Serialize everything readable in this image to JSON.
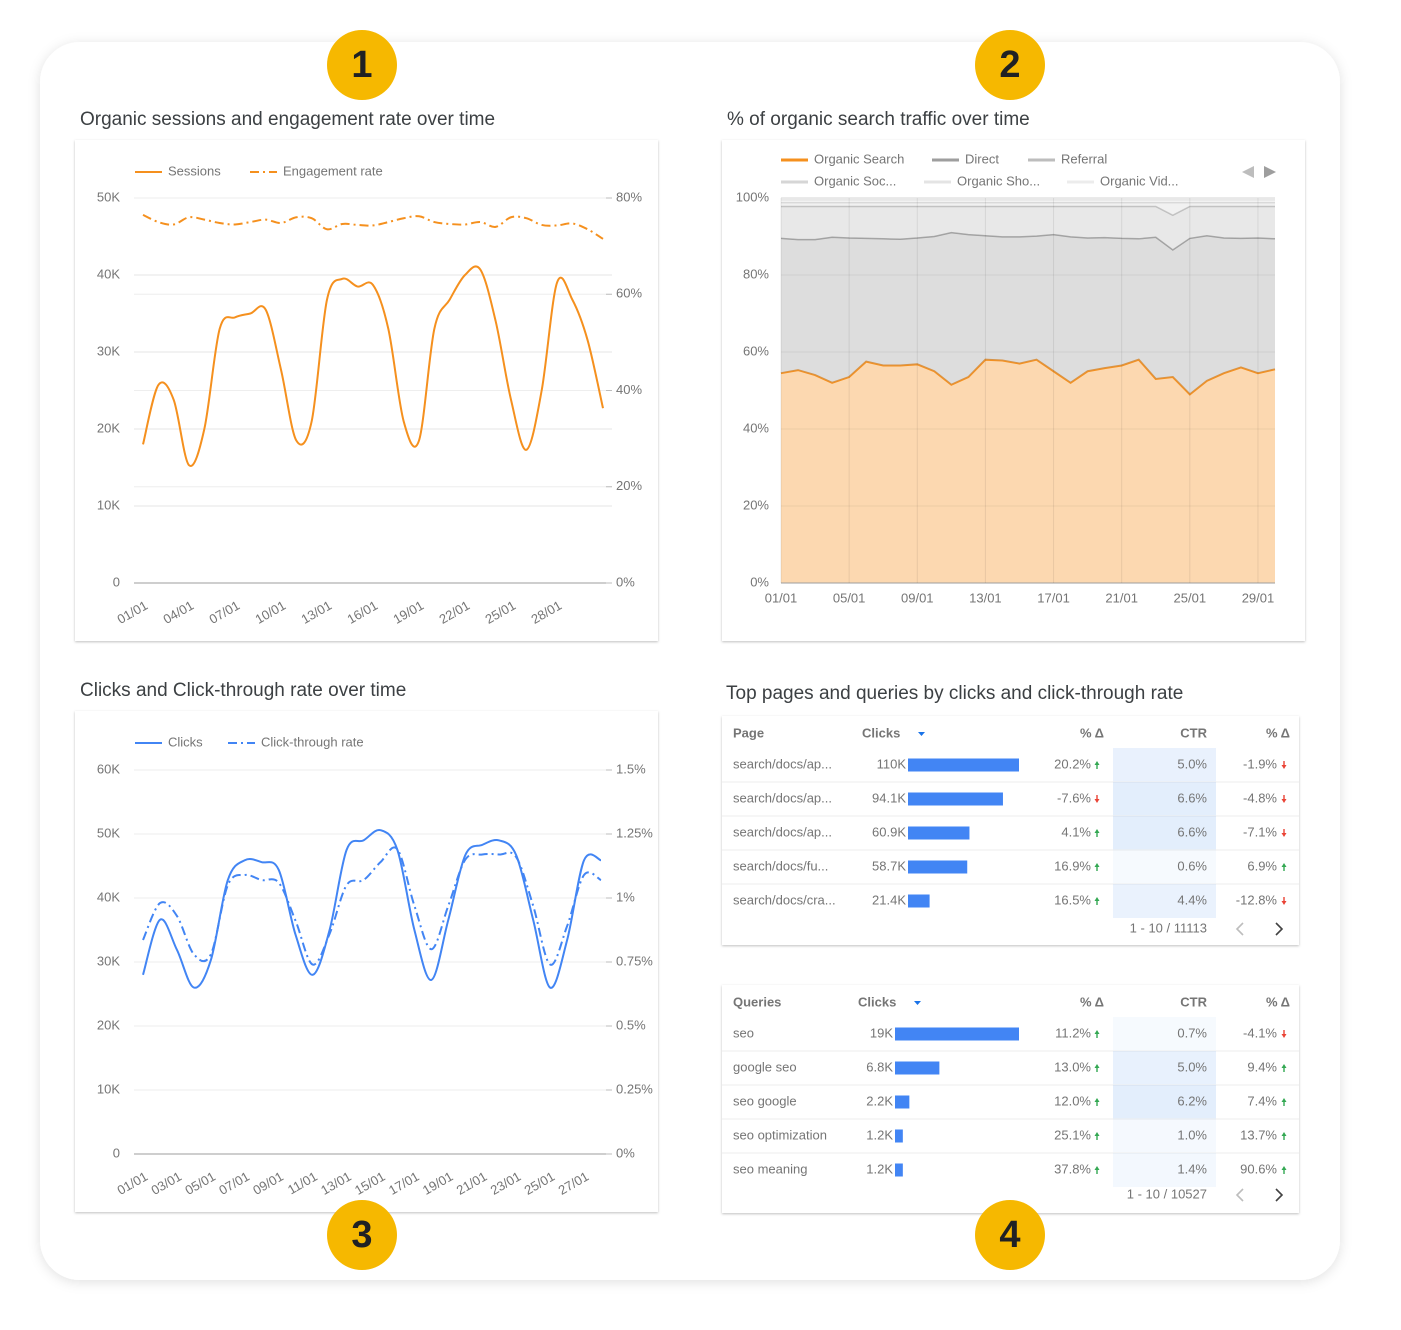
{
  "badges": [
    "1",
    "2",
    "3",
    "4"
  ],
  "chart_data": [
    {
      "type": "line",
      "title": "Organic sessions and engagement rate over time",
      "curve": "smooth",
      "grid": true,
      "categories": [
        "01/01",
        null,
        null,
        "04/01",
        null,
        null,
        "07/01",
        null,
        null,
        "10/01",
        null,
        null,
        "13/01",
        null,
        null,
        "16/01",
        null,
        null,
        "19/01",
        null,
        null,
        "22/01",
        null,
        null,
        "25/01",
        null,
        null,
        "28/01",
        null,
        null,
        null
      ],
      "series": [
        {
          "name": "Sessions",
          "color": "#f5901e",
          "values": [
            18000,
            25700,
            23800,
            15300,
            20000,
            33000,
            34500,
            35000,
            35500,
            27700,
            18500,
            21000,
            36800,
            39500,
            38500,
            38700,
            33000,
            21000,
            18500,
            33000,
            36800,
            40000,
            40700,
            34000,
            23800,
            17300,
            25000,
            39000,
            36800,
            31500,
            22700
          ]
        },
        {
          "name": "Engagement rate",
          "color": "#f5901e",
          "dash": "dashdot",
          "axis": "y2",
          "values": [
            76.5,
            75,
            74.5,
            76,
            75.5,
            74.8,
            74.5,
            75,
            75.5,
            74.8,
            76,
            75.8,
            73.5,
            74.6,
            74.4,
            74.3,
            75,
            75.8,
            76.2,
            75,
            74.6,
            74.5,
            75,
            74,
            76,
            75.8,
            74.4,
            74.3,
            74.7,
            73.5,
            71.5
          ]
        }
      ],
      "ylim": [
        0,
        50000
      ],
      "yticks": [
        {
          "value": 0,
          "label": "0"
        },
        {
          "value": 10000,
          "label": "10K"
        },
        {
          "value": 20000,
          "label": "20K"
        },
        {
          "value": 30000,
          "label": "30K"
        },
        {
          "value": 40000,
          "label": "40K"
        },
        {
          "value": 50000,
          "label": "50K"
        }
      ],
      "y2lim": [
        0,
        80
      ],
      "y2ticks": [
        {
          "value": 0,
          "label": "0%"
        },
        {
          "value": 20,
          "label": "20%"
        },
        {
          "value": 40,
          "label": "40%"
        },
        {
          "value": 60,
          "label": "60%"
        },
        {
          "value": 80,
          "label": "80%"
        }
      ]
    },
    {
      "type": "area",
      "stacked": true,
      "title": "% of organic search traffic over time",
      "grid": true,
      "categories": [
        "01/01",
        null,
        null,
        null,
        "05/01",
        null,
        null,
        null,
        "09/01",
        null,
        null,
        null,
        "13/01",
        null,
        null,
        null,
        "17/01",
        null,
        null,
        null,
        "21/01",
        null,
        null,
        null,
        "25/01",
        null,
        null,
        null,
        "29/01",
        null
      ],
      "series": [
        {
          "name": "Organic Search",
          "color": "#f5901e",
          "values": [
            54.5,
            55.3,
            54,
            52,
            53.5,
            57.5,
            56.5,
            56.5,
            56.8,
            55,
            51.5,
            53.5,
            58,
            57.8,
            57,
            58,
            55,
            52,
            55,
            55.8,
            56.5,
            58,
            53,
            53.5,
            49,
            52.5,
            54.5,
            56,
            54.5,
            55.5
          ]
        },
        {
          "name": "Direct",
          "color": "#9e9e9e",
          "values": [
            35.0,
            33.9,
            35.2,
            37.8,
            36.1,
            32.0,
            32.9,
            32.8,
            32.8,
            35.0,
            39.5,
            37.0,
            32.2,
            32.1,
            32.9,
            32.1,
            35.5,
            37.9,
            34.6,
            33.9,
            33.0,
            31.4,
            36.8,
            33.0,
            40.5,
            37.7,
            35.1,
            33.5,
            35.1,
            33.9
          ]
        },
        {
          "name": "Referral",
          "color": "#bdbdbd",
          "values": [
            8.3,
            8.6,
            8.6,
            8.0,
            8.2,
            8.3,
            8.4,
            8.5,
            8.2,
            7.8,
            6.8,
            7.3,
            7.6,
            7.9,
            7.9,
            7.7,
            7.3,
            7.9,
            8.2,
            8.1,
            8.3,
            8.4,
            8.0,
            9.0,
            8.3,
            7.6,
            8.2,
            8.3,
            8.2,
            8.4
          ]
        },
        {
          "name": "Organic Soc...",
          "color": "#d6d6d6",
          "values": [
            1,
            1,
            1,
            1,
            1,
            1,
            1,
            1,
            1,
            1,
            1,
            1,
            1,
            1,
            1,
            1,
            1,
            1,
            1,
            1,
            1,
            1,
            1,
            3.3,
            1,
            1,
            1,
            1,
            1,
            1
          ]
        },
        {
          "name": "Organic Sho...",
          "color": "#e4e4e4",
          "values": [
            0.7,
            0.7,
            0.7,
            0.7,
            0.7,
            0.7,
            0.7,
            0.7,
            0.7,
            0.7,
            0.7,
            0.7,
            0.7,
            0.7,
            0.7,
            0.7,
            0.7,
            0.7,
            0.7,
            0.7,
            0.7,
            0.7,
            0.7,
            0.7,
            0.7,
            0.7,
            0.7,
            0.7,
            0.7,
            0.7
          ]
        },
        {
          "name": "Organic Vid...",
          "color": "#ececec",
          "values": [
            0.5,
            0.5,
            0.5,
            0.5,
            0.5,
            0.5,
            0.5,
            0.5,
            0.5,
            0.5,
            0.5,
            0.5,
            0.5,
            0.5,
            0.5,
            0.5,
            0.5,
            0.5,
            0.5,
            0.5,
            0.5,
            0.5,
            0.5,
            0.5,
            0.5,
            0.5,
            0.5,
            0.5,
            0.5,
            0.5
          ]
        }
      ],
      "ylim": [
        0,
        100
      ],
      "yticks": [
        {
          "value": 0,
          "label": "0%"
        },
        {
          "value": 20,
          "label": "20%"
        },
        {
          "value": 40,
          "label": "40%"
        },
        {
          "value": 60,
          "label": "60%"
        },
        {
          "value": 80,
          "label": "80%"
        },
        {
          "value": 100,
          "label": "100%"
        }
      ]
    },
    {
      "type": "line",
      "title": "Clicks and Click-through rate over time",
      "curve": "smooth",
      "grid": true,
      "categories": [
        "01/01",
        null,
        "03/01",
        null,
        "05/01",
        null,
        "07/01",
        null,
        "09/01",
        null,
        "11/01",
        null,
        "13/01",
        null,
        "15/01",
        null,
        "17/01",
        null,
        "19/01",
        null,
        "21/01",
        null,
        "23/01",
        null,
        "25/01",
        null,
        "27/01",
        null
      ],
      "series": [
        {
          "name": "Clicks",
          "color": "#4285f4",
          "values": [
            28000,
            36600,
            31900,
            26000,
            30300,
            42800,
            45900,
            45600,
            44400,
            34200,
            28000,
            35000,
            47500,
            49000,
            50600,
            47500,
            35000,
            27200,
            36600,
            46700,
            48300,
            49000,
            46700,
            36600,
            26000,
            33400,
            45900,
            45900
          ]
        },
        {
          "name": "Click-through rate",
          "color": "#4285f4",
          "dash": "dashdot",
          "axis": "y2",
          "values": [
            0.836,
            0.98,
            0.93,
            0.78,
            0.78,
            1.05,
            1.09,
            1.07,
            1.06,
            0.91,
            0.74,
            0.86,
            1.05,
            1.07,
            1.14,
            1.19,
            0.97,
            0.8,
            0.97,
            1.15,
            1.17,
            1.17,
            1.16,
            0.97,
            0.74,
            0.89,
            1.09,
            1.07
          ]
        }
      ],
      "ylim": [
        0,
        60000
      ],
      "yticks": [
        {
          "value": 0,
          "label": "0"
        },
        {
          "value": 10000,
          "label": "10K"
        },
        {
          "value": 20000,
          "label": "20K"
        },
        {
          "value": 30000,
          "label": "30K"
        },
        {
          "value": 40000,
          "label": "40K"
        },
        {
          "value": 50000,
          "label": "50K"
        },
        {
          "value": 60000,
          "label": "60K"
        }
      ],
      "y2lim": [
        0,
        1.5
      ],
      "y2ticks": [
        {
          "value": 0,
          "label": "0%"
        },
        {
          "value": 0.25,
          "label": "0.25%"
        },
        {
          "value": 0.5,
          "label": "0.5%"
        },
        {
          "value": 0.75,
          "label": "0.75%"
        },
        {
          "value": 1,
          "label": "1%"
        },
        {
          "value": 1.25,
          "label": "1.25%"
        },
        {
          "value": 1.5,
          "label": "1.5%"
        }
      ]
    }
  ],
  "top_pages_and_queries": {
    "title": "Top pages and queries by clicks and click-through rate",
    "tables": [
      {
        "columns": [
          "Page",
          "Clicks",
          "% Δ",
          "CTR",
          "% Δ"
        ],
        "rows": [
          {
            "label": "search/docs/ap...",
            "clicks": 110000,
            "clicks_label": "110K",
            "clicks_change": "20.2%",
            "ctr": "5.0%",
            "ctr_change": "-1.9%"
          },
          {
            "label": "search/docs/ap...",
            "clicks": 94100,
            "clicks_label": "94.1K",
            "clicks_change": "-7.6%",
            "ctr": "6.6%",
            "ctr_change": "-4.8%"
          },
          {
            "label": "search/docs/ap...",
            "clicks": 60900,
            "clicks_label": "60.9K",
            "clicks_change": "4.1%",
            "ctr": "6.6%",
            "ctr_change": "-7.1%"
          },
          {
            "label": "search/docs/fu...",
            "clicks": 58700,
            "clicks_label": "58.7K",
            "clicks_change": "16.9%",
            "ctr": "0.6%",
            "ctr_change": "6.9%"
          },
          {
            "label": "search/docs/cra...",
            "clicks": 21400,
            "clicks_label": "21.4K",
            "clicks_change": "16.5%",
            "ctr": "4.4%",
            "ctr_change": "-12.8%"
          }
        ],
        "pagination": "1 - 10 / 11113"
      },
      {
        "columns": [
          "Queries",
          "Clicks",
          "% Δ",
          "CTR",
          "% Δ"
        ],
        "rows": [
          {
            "label": "seo",
            "clicks": 19000,
            "clicks_label": "19K",
            "clicks_change": "11.2%",
            "ctr": "0.7%",
            "ctr_change": "-4.1%"
          },
          {
            "label": "google seo",
            "clicks": 6800,
            "clicks_label": "6.8K",
            "clicks_change": "13.0%",
            "ctr": "5.0%",
            "ctr_change": "9.4%"
          },
          {
            "label": "seo google",
            "clicks": 2200,
            "clicks_label": "2.2K",
            "clicks_change": "12.0%",
            "ctr": "6.2%",
            "ctr_change": "7.4%"
          },
          {
            "label": "seo optimization",
            "clicks": 1200,
            "clicks_label": "1.2K",
            "clicks_change": "25.1%",
            "ctr": "1.0%",
            "ctr_change": "13.7%"
          },
          {
            "label": "seo meaning",
            "clicks": 1200,
            "clicks_label": "1.2K",
            "clicks_change": "37.8%",
            "ctr": "1.4%",
            "ctr_change": "90.6%"
          }
        ],
        "pagination": "1 - 10 / 10527"
      }
    ]
  }
}
